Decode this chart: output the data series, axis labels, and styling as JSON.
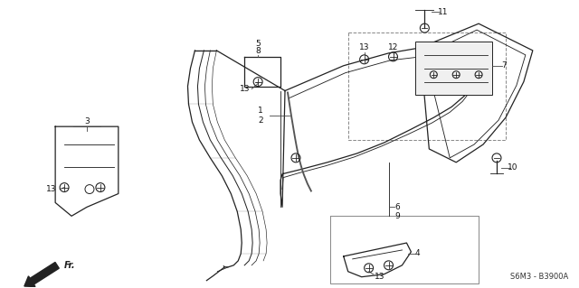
{
  "bg_color": "#ffffff",
  "diagram_code": "S6M3 - B3900A",
  "line_color": "#222222",
  "label_color": "#111111"
}
